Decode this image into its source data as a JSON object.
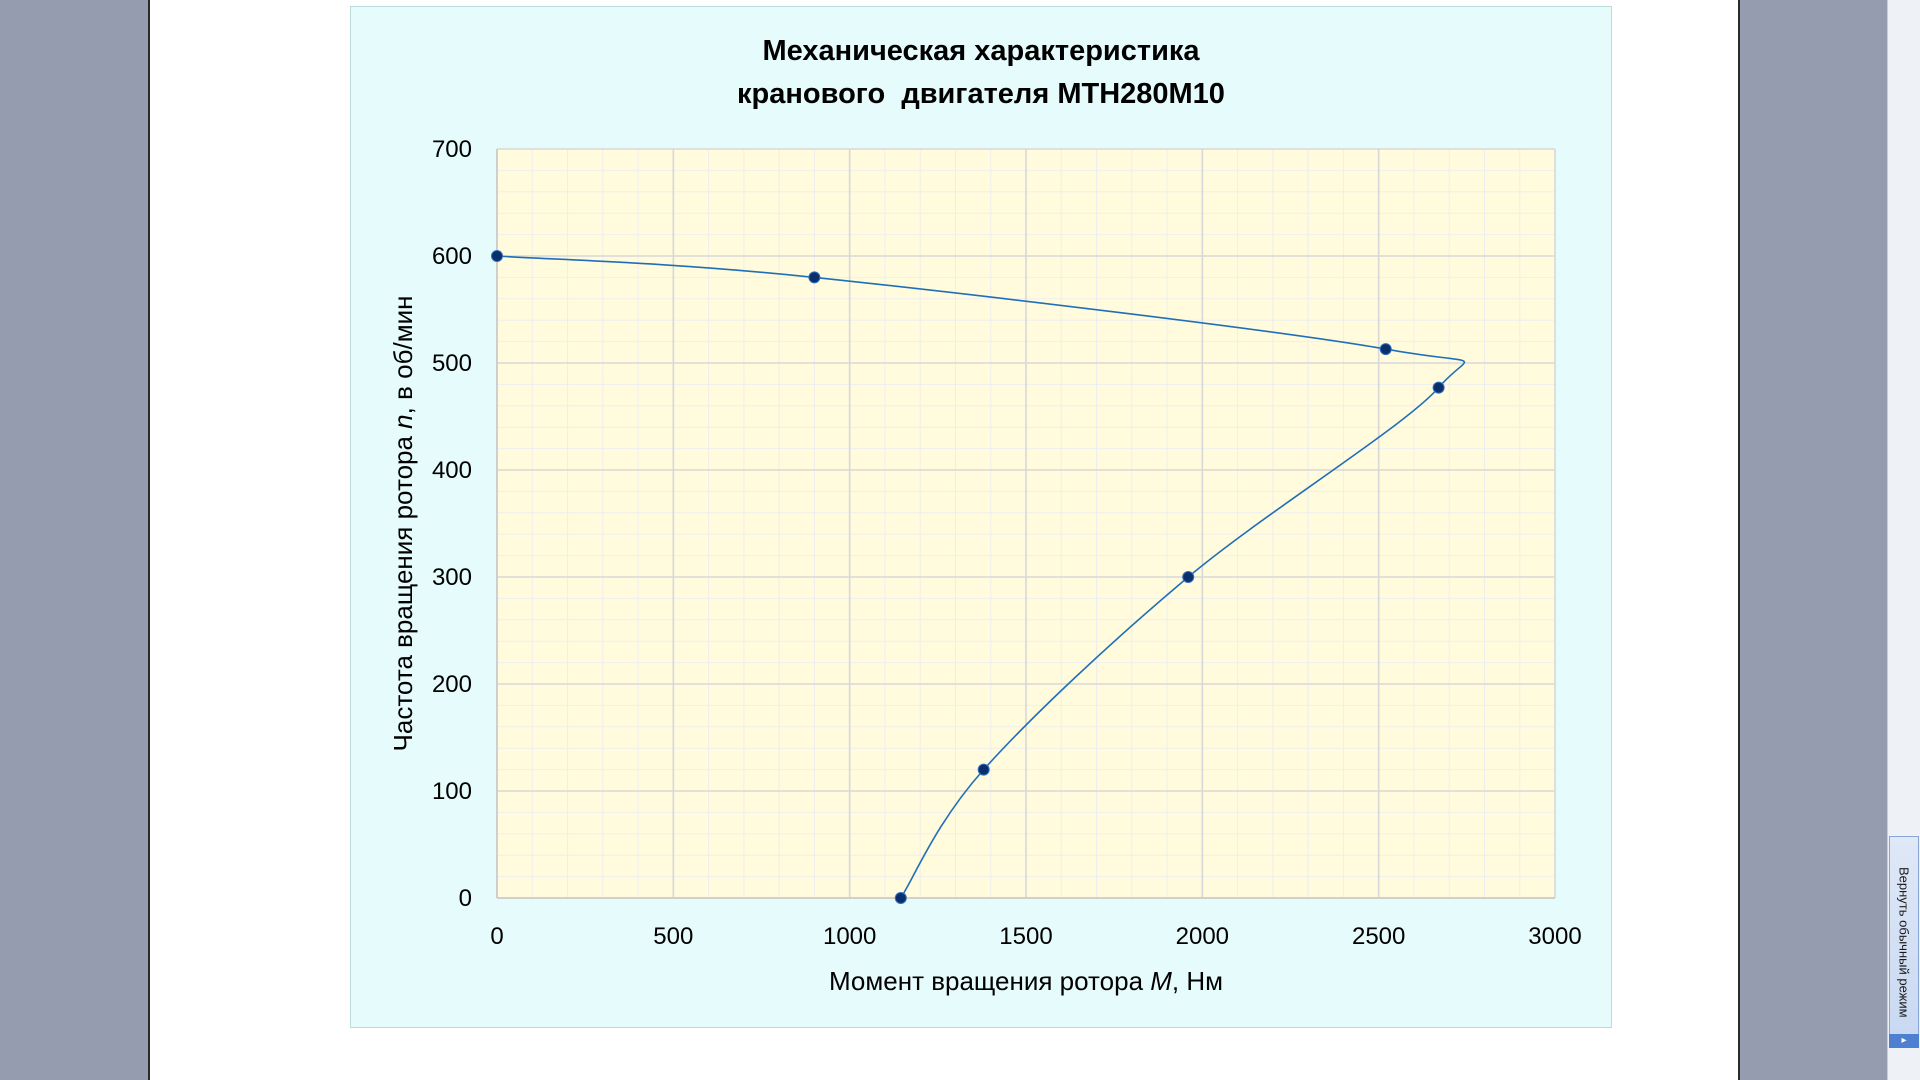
{
  "window": {
    "side_button_label": "Вернуть обычный режим"
  },
  "chart_data": {
    "type": "scatter",
    "title_line1": "Механическая характеристика",
    "title_line2": "кранового  двигателя МТН280М10",
    "xlabel_prefix": "Момент вращения ротора ",
    "xlabel_italic": "M",
    "xlabel_suffix": ", Нм",
    "ylabel_prefix": "Частота вращения ротора ",
    "ylabel_italic": "n",
    "ylabel_suffix": ", в об/мин",
    "xlim": [
      0,
      3000
    ],
    "ylim": [
      0,
      700
    ],
    "x_ticks": [
      0,
      500,
      1000,
      1500,
      2000,
      2500,
      3000
    ],
    "y_ticks": [
      0,
      100,
      200,
      300,
      400,
      500,
      600,
      700
    ],
    "grid": true,
    "minor_grid": true,
    "smooth_line": true,
    "series": [
      {
        "x": [
          0,
          900,
          2520,
          2670,
          1960,
          1380,
          1145
        ],
        "y": [
          600,
          580,
          513,
          477,
          300,
          120,
          0
        ]
      }
    ],
    "colors": {
      "plot_background": "#fffbdc",
      "chart_background": "#e6fbfb",
      "line": "#1f6fb8",
      "marker": "#0b2f6b",
      "major_grid": "#d8d8d8",
      "minor_grid": "#eeeeee"
    }
  }
}
